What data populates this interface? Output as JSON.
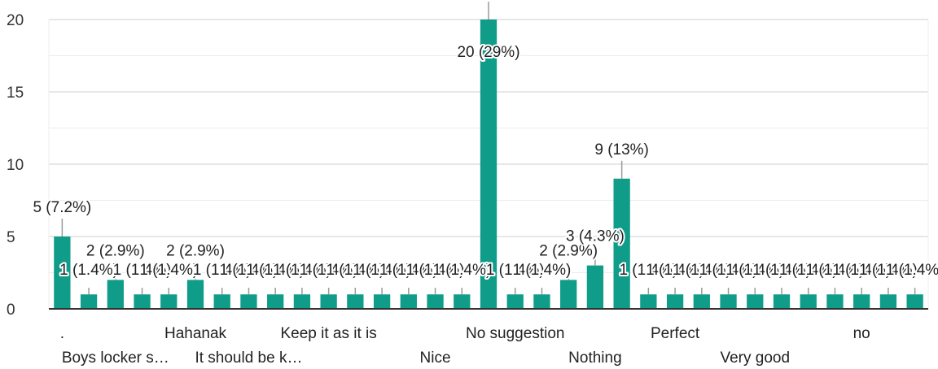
{
  "chart_data": {
    "type": "bar",
    "title": "",
    "xlabel": "",
    "ylabel": "",
    "ylim": [
      0,
      20
    ],
    "yticks": [
      0,
      5,
      10,
      15,
      20
    ],
    "grid": true,
    "legend": "none",
    "bar_color": "#0f9d8a",
    "categories": [
      ".",
      "",
      "Boys locker s…",
      "",
      "",
      "Hahanak",
      "",
      "It should be k…",
      "",
      "",
      "Keep it as it is",
      "",
      "",
      "",
      "Nice",
      "",
      "",
      "No suggestion",
      "",
      "",
      "Nothing",
      "",
      "",
      "Perfect",
      "",
      "",
      "Very good",
      "",
      "",
      "",
      "no",
      "",
      ""
    ],
    "values": [
      5,
      1,
      2,
      1,
      1,
      2,
      1,
      1,
      1,
      1,
      1,
      1,
      1,
      1,
      1,
      1,
      20,
      1,
      1,
      2,
      3,
      9,
      1,
      1,
      1,
      1,
      1,
      1,
      1,
      1,
      1,
      1,
      1
    ],
    "data_labels": [
      "5 (7.2%)",
      "1 (1.4%)",
      "2 (2.9%)",
      "1 (1.4%)",
      "1 (1.4%)",
      "2 (2.9%)",
      "1 (1.4%)",
      "1 (1.4%)",
      "1 (1.4%)",
      "1 (1.4%)",
      "1 (1.4%)",
      "1 (1.4%)",
      "1 (1.4%)",
      "1 (1.4%)",
      "1 (1.4%)",
      "1 (1.4%)",
      "20 (29%)",
      "1 (1.4%)",
      "1 (1.4%)",
      "2 (2.9%)",
      "3 (4.3%)",
      "9 (13%)",
      "1 (1.4%)",
      "1 (1.4%)",
      "1 (1.4%)",
      "1 (1.4%)",
      "1 (1.4%)",
      "1 (1.4%)",
      "1 (1.4%)",
      "1 (1.4%)",
      "1 (1.4%)",
      "1 (1.4%)",
      "1 (1.4%)"
    ]
  }
}
